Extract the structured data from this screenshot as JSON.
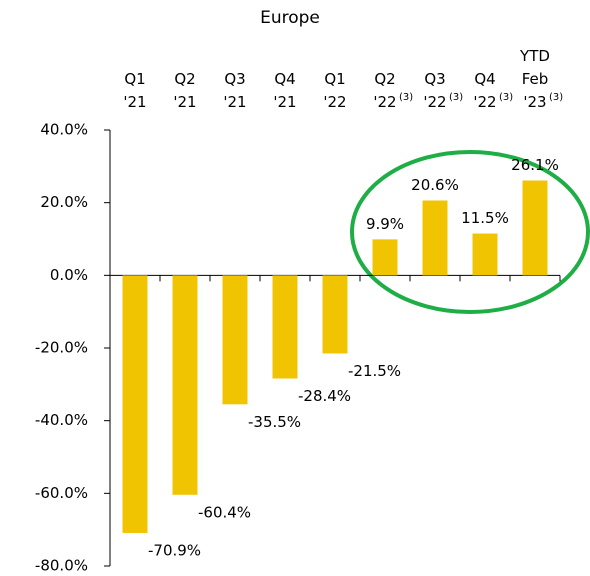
{
  "chart_data": {
    "type": "bar",
    "title": "Europe",
    "categories": [
      "Q1 '21",
      "Q2 '21",
      "Q3 '21",
      "Q4 '21",
      "Q1 '22",
      "Q2 '22",
      "Q3 '22",
      "Q4 '22",
      "YTD Feb '23"
    ],
    "category_notes": [
      null,
      null,
      null,
      null,
      null,
      "(3)",
      "(3)",
      "(3)",
      "(3)"
    ],
    "values": [
      -70.9,
      -60.4,
      -35.5,
      -28.4,
      -21.5,
      9.9,
      20.6,
      11.5,
      26.1
    ],
    "value_labels": [
      "-70.9%",
      "-60.4%",
      "-35.5%",
      "-28.4%",
      "-21.5%",
      "9.9%",
      "20.6%",
      "11.5%",
      "26.1%"
    ],
    "color": "#f0c400",
    "ylim": [
      -80,
      40
    ],
    "yticks": [
      {
        "value": -80,
        "label": "-80.0%"
      },
      {
        "value": -60,
        "label": "-60.0%"
      },
      {
        "value": -40,
        "label": "-40.0%"
      },
      {
        "value": -20,
        "label": "-20.0%"
      },
      {
        "value": 0,
        "label": "0.0%"
      },
      {
        "value": 20,
        "label": "20.0%"
      },
      {
        "value": 40,
        "label": "40.0%"
      }
    ],
    "grid": false
  }
}
